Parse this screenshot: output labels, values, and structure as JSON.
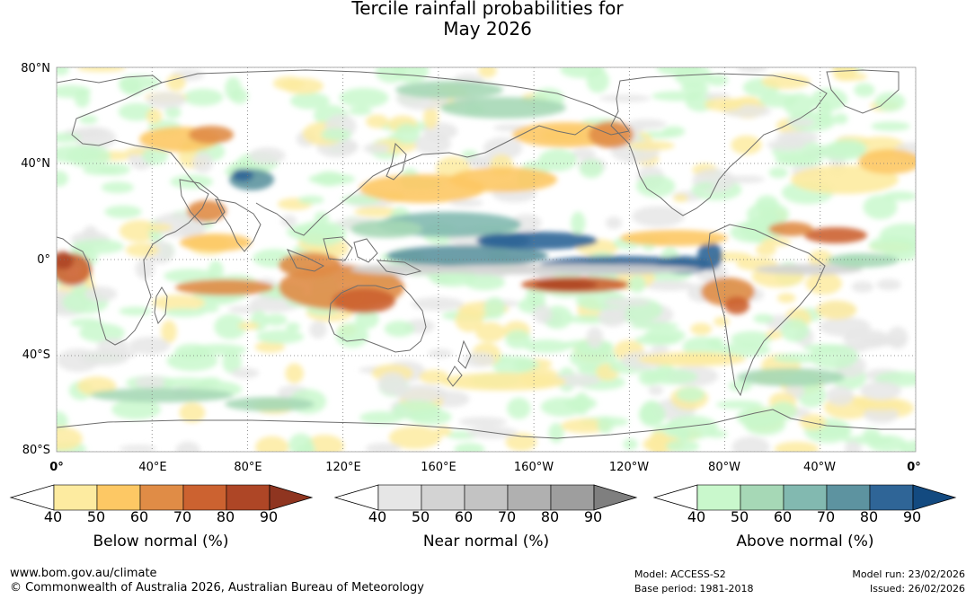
{
  "title": {
    "line1": "Tercile rainfall probabilities for",
    "line2": "May 2026"
  },
  "map": {
    "lat_labels": [
      "80°N",
      "40°N",
      "0°",
      "40°S",
      "80°S"
    ],
    "lon_labels": [
      "0°",
      "40°E",
      "80°E",
      "120°E",
      "160°E",
      "160°W",
      "120°W",
      "80°W",
      "40°W",
      "0°"
    ],
    "lat_values": [
      80,
      40,
      0,
      -40,
      -80
    ],
    "lon_values": [
      0,
      40,
      80,
      120,
      160,
      200,
      240,
      280,
      320,
      360
    ],
    "ocean_color": "#ffffff",
    "coastline_color": "#6e6e6e"
  },
  "legends": [
    {
      "caption": "Below normal (%)",
      "ticks": [
        "40",
        "50",
        "60",
        "70",
        "80",
        "90"
      ],
      "colors": [
        "#ffffff",
        "#fdeba0",
        "#fdc864",
        "#e08c46",
        "#cc6230",
        "#ae4626",
        "#8f3520"
      ]
    },
    {
      "caption": "Near normal (%)",
      "ticks": [
        "40",
        "50",
        "60",
        "70",
        "80",
        "90"
      ],
      "colors": [
        "#ffffff",
        "#e6e6e6",
        "#d3d3d3",
        "#c3c3c3",
        "#b0b0b0",
        "#9e9e9e",
        "#7f7f7f"
      ]
    },
    {
      "caption": "Above normal (%)",
      "ticks": [
        "40",
        "50",
        "60",
        "70",
        "80",
        "90"
      ],
      "colors": [
        "#ffffff",
        "#c9f8cc",
        "#a6d8b6",
        "#82b9b0",
        "#5d93a0",
        "#2f6597",
        "#134a80"
      ]
    }
  ],
  "footer": {
    "url": "www.bom.gov.au/climate",
    "copyright": "© Commonwealth of Australia 2026, Australian Bureau of Meteorology",
    "model": "Model: ACCESS-S2",
    "base_period": "Base period: 1981-2018",
    "model_run": "Model run: 23/02/2026",
    "issued": "Issued: 26/02/2026"
  }
}
